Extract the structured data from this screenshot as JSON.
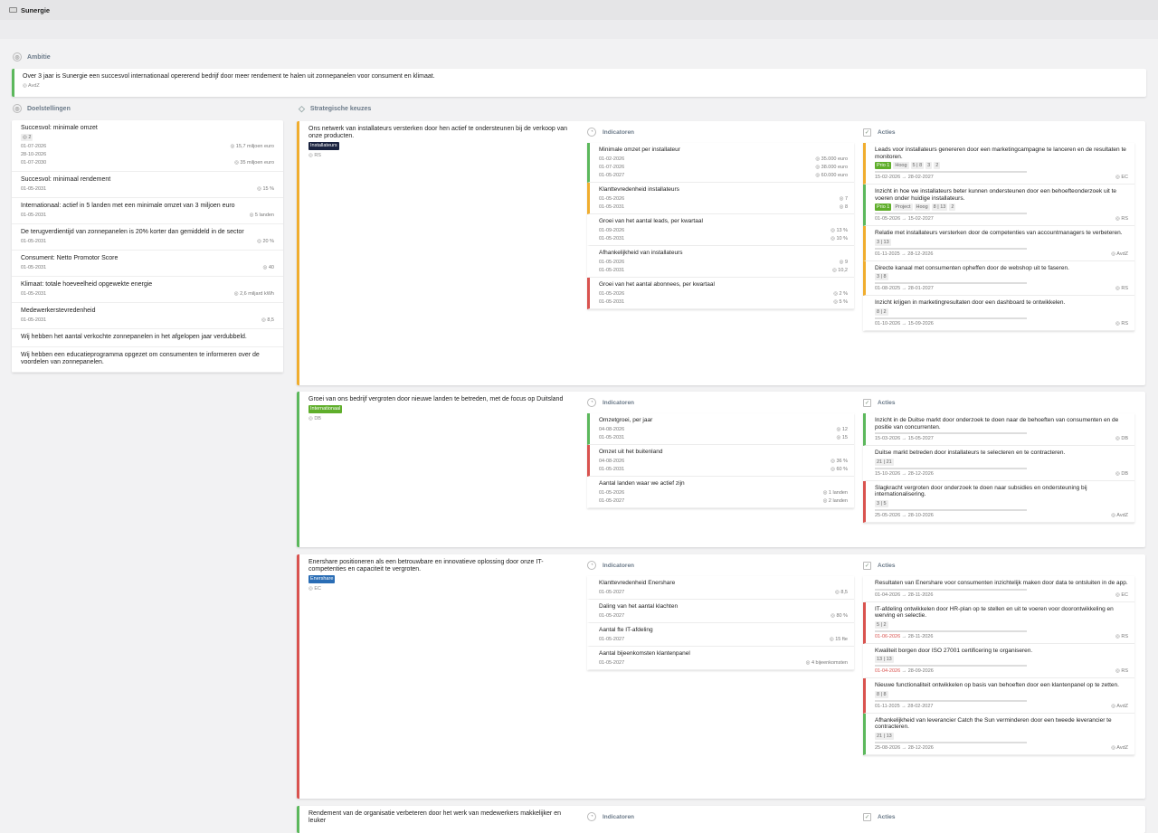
{
  "app": {
    "title": "Sunergie"
  },
  "ambitie": {
    "label": "Ambitie",
    "text": "Over 3 jaar is Sunergie een succesvol internationaal opererend bedrijf door meer rendement te halen uit zonnepanelen voor consument en klimaat.",
    "owner": "AvdZ"
  },
  "doel": {
    "label": "Doelstellingen",
    "items": [
      {
        "title": "Succesvol: minimale omzet",
        "count": "2",
        "rows": [
          [
            "01-07-2026",
            "15,7 miljoen euro"
          ],
          [
            "28-10-2026",
            ""
          ],
          [
            "01-07-2030",
            "35 miljoen euro"
          ]
        ]
      },
      {
        "title": "Succesvol: minimaal rendement",
        "rows": [
          [
            "01-05-2031",
            "15 %"
          ]
        ]
      },
      {
        "title": "Internationaal: actief in 5 landen met een minimale omzet van 3 miljoen euro",
        "rows": [
          [
            "01-05-2031",
            "5 landen"
          ]
        ]
      },
      {
        "title": "De terugverdientijd van zonnepanelen is 20% korter dan gemiddeld in de sector",
        "rows": [
          [
            "01-05-2031",
            "20 %"
          ]
        ]
      },
      {
        "title": "Consument: Netto Promotor Score",
        "rows": [
          [
            "01-05-2031",
            "40"
          ]
        ]
      },
      {
        "title": "Klimaat: totale hoeveelheid opgewekte energie",
        "rows": [
          [
            "01-05-2031",
            "2,6 miljard kWh"
          ]
        ]
      },
      {
        "title": "Medewerkerstevredenheid",
        "rows": [
          [
            "01-05-2031",
            "8,5"
          ]
        ]
      },
      {
        "title": "Wij hebben het aantal verkochte zonnepanelen in het afgelopen jaar verdubbeld.",
        "rows": []
      },
      {
        "title": "Wij hebben een educatieprogramma opgezet om consumenten te informeren over de voordelen van zonnepanelen.",
        "rows": []
      }
    ]
  },
  "strat": {
    "label": "Strategische keuzes",
    "ind_label": "Indicatoren",
    "act_label": "Acties",
    "items": [
      {
        "title": "Ons netwerk van installateurs versterken door hen actief te ondersteunen bij de verkoop van onze producten.",
        "tag": "Installateurs",
        "tagcolor": "#1a2340",
        "owner": "RS",
        "border": "#f0ad2e",
        "ind": [
          {
            "t": "Minimale omzet per installateur",
            "c": "g",
            "rows": [
              [
                "01-02-2026",
                "35.000 euro"
              ],
              [
                "01-07-2026",
                "38.000 euro"
              ],
              [
                "01-05-2027",
                "60.000 euro"
              ]
            ]
          },
          {
            "t": "Klanttevredenheid installateurs",
            "c": "y",
            "rows": [
              [
                "01-05-2026",
                "7"
              ],
              [
                "01-05-2031",
                "8"
              ]
            ]
          },
          {
            "t": "Groei van het aantal leads, per kwartaal",
            "c": "n",
            "rows": [
              [
                "01-09-2026",
                "13 %"
              ],
              [
                "01-05-2031",
                "10 %"
              ]
            ]
          },
          {
            "t": "Afhankelijkheid van installateurs",
            "c": "n",
            "rows": [
              [
                "01-05-2026",
                "9"
              ],
              [
                "01-05-2031",
                "10,2"
              ]
            ]
          },
          {
            "t": "Groei van het aantal abonnees, per kwartaal",
            "c": "r",
            "rows": [
              [
                "01-05-2026",
                "2 %"
              ],
              [
                "01-05-2031",
                "5 %"
              ]
            ]
          }
        ],
        "act": [
          {
            "t": "Leads voor installateurs genereren door een marketingcampagne te lanceren en de resultaten te monitoren.",
            "c": "y",
            "pills": [
              "Prio 1",
              "Hoog",
              "5 | 8",
              "3",
              "2"
            ],
            "d1": "15-02-2026",
            "d2": "28-02-2027",
            "o": "EC"
          },
          {
            "t": "Inzicht in hoe we installateurs beter kunnen ondersteunen door een behoefteonderzoek uit te voeren onder huidige installateurs.",
            "c": "g",
            "pills": [
              "Prio 1",
              "Project",
              "Hoog",
              "8 | 13",
              "2"
            ],
            "d1": "01-05-2026",
            "d2": "15-02-2027",
            "o": "RS"
          },
          {
            "t": "Relatie met installateurs versterken door de competenties van accountmanagers te verbeteren.",
            "c": "y",
            "pills": [
              "3 | 13"
            ],
            "d1": "01-11-2025",
            "d2": "28-12-2026",
            "o": "AvdZ"
          },
          {
            "t": "Directe kanaal met consumenten opheffen door de webshop uit te faseren.",
            "c": "y",
            "pills": [
              "3 | 8"
            ],
            "d1": "01-08-2025",
            "d2": "28-01-2027",
            "o": "RS"
          },
          {
            "t": "Inzicht krijgen in marketingresultaten door een dashboard te ontwikkelen.",
            "c": "n",
            "pills": [
              "8 | 2"
            ],
            "d1": "01-10-2026",
            "d2": "15-09-2026",
            "o": "RS"
          }
        ]
      },
      {
        "title": "Groei van ons bedrijf vergroten door nieuwe landen te betreden, met de focus op Duitsland",
        "tag": "Internationaal",
        "tagcolor": "#5fae2b",
        "owner": "DB",
        "border": "#5cb85c",
        "ind": [
          {
            "t": "Omzetgroei, per jaar",
            "c": "g",
            "rows": [
              [
                "04-08-2026",
                "12"
              ],
              [
                "01-05-2031",
                "15"
              ]
            ]
          },
          {
            "t": "Omzet uit het buitenland",
            "c": "r",
            "rows": [
              [
                "04-08-2026",
                "36 %"
              ],
              [
                "01-05-2031",
                "60 %"
              ]
            ]
          },
          {
            "t": "Aantal landen waar we actief zijn",
            "c": "n",
            "rows": [
              [
                "01-05-2026",
                "1 landen"
              ],
              [
                "01-05-2027",
                "2 landen"
              ]
            ]
          }
        ],
        "act": [
          {
            "t": "Inzicht in de Duitse markt door onderzoek te doen naar de behoeften van consumenten en de positie van concurrenten.",
            "c": "g",
            "pills": [],
            "d1": "15-03-2026",
            "d2": "15-05-2027",
            "o": "DB"
          },
          {
            "t": "Duitse markt betreden door installateurs te selecteren en te contracteren.",
            "c": "n",
            "pills": [
              "21 | 21"
            ],
            "d1": "15-10-2026",
            "d2": "28-12-2026",
            "o": "DB"
          },
          {
            "t": "Slagkracht vergroten door onderzoek te doen naar subsidies en ondersteuning bij internationalisering.",
            "c": "r",
            "pills": [
              "3 | 5"
            ],
            "d1": "25-05-2026",
            "d2": "28-10-2026",
            "o": "AvdZ"
          }
        ]
      },
      {
        "title": "Enershare positioneren als een betrouwbare en innovatieve oplossing door onze IT-competenties en capaciteit te vergroten.",
        "tag": "Enershare",
        "tagcolor": "#2a6db5",
        "owner": "EC",
        "border": "#d9534f",
        "ind": [
          {
            "t": "Klanttevredenheid Enershare",
            "c": "n",
            "rows": [
              [
                "01-05-2027",
                "8,5"
              ]
            ]
          },
          {
            "t": "Daling van het aantal klachten",
            "c": "n",
            "rows": [
              [
                "01-05-2027",
                "80 %"
              ]
            ]
          },
          {
            "t": "Aantal fte IT-afdeling",
            "c": "n",
            "rows": [
              [
                "01-05-2027",
                "15 fte"
              ]
            ]
          },
          {
            "t": "Aantal bijeenkomsten klantenpanel",
            "c": "n",
            "rows": [
              [
                "01-05-2027",
                "4 bijeenkomsten"
              ]
            ]
          }
        ],
        "act": [
          {
            "t": "Resultaten van Enershare voor consumenten inzichtelijk maken door data te ontsluiten in de app.",
            "c": "n",
            "pills": [],
            "d1": "01-04-2026",
            "d2": "28-11-2026",
            "o": "EC"
          },
          {
            "t": "IT-afdeling ontwikkelen door HR-plan op te stellen en uit te voeren voor doorontwikkeling en werving en selectie.",
            "c": "r",
            "pills": [
              "5 | 2"
            ],
            "d1": "01-06-2026",
            "d2": "28-11-2026",
            "o": "RS",
            "late": true
          },
          {
            "t": "Kwaliteit borgen door ISO 27001 certificering te organiseren.",
            "c": "n",
            "pills": [
              "13 | 13"
            ],
            "d1": "01-04-2026",
            "d2": "28-09-2026",
            "o": "RS",
            "late": true
          },
          {
            "t": "Nieuwe functionaliteit ontwikkelen op basis van behoeften door een klantenpanel op te zetten.",
            "c": "r",
            "pills": [
              "8 | 8"
            ],
            "d1": "01-11-2025",
            "d2": "28-02-2027",
            "o": "AvdZ"
          },
          {
            "t": "Afhankelijkheid van leverancier Catch the Sun verminderen door een tweede leverancier te contracteren.",
            "c": "g",
            "pills": [
              "21 | 13"
            ],
            "d1": "25-08-2026",
            "d2": "28-12-2026",
            "o": "AvdZ"
          }
        ]
      },
      {
        "title": "Rendement van de organisatie verbeteren door het werk van medewerkers makkelijker en leuker",
        "tag": "",
        "tagcolor": "",
        "owner": "",
        "border": "#5cb85c",
        "ind": [],
        "act": []
      }
    ]
  }
}
